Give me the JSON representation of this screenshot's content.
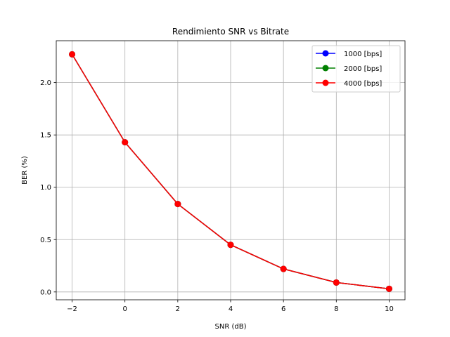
{
  "chart_data": {
    "type": "line",
    "title": "Rendimiento SNR vs Bitrate",
    "xlabel": "SNR (dB)",
    "ylabel": "BER (%)",
    "x": [
      -2,
      0,
      2,
      4,
      6,
      8,
      10
    ],
    "xlim": [
      -2.6,
      10.6
    ],
    "ylim": [
      -0.075,
      2.4
    ],
    "xticks": [
      -2,
      0,
      2,
      4,
      6,
      8,
      10
    ],
    "xtick_labels": [
      "−2",
      "0",
      "2",
      "4",
      "6",
      "8",
      "10"
    ],
    "yticks": [
      0.0,
      0.5,
      1.0,
      1.5,
      2.0
    ],
    "ytick_labels": [
      "0.0",
      "0.5",
      "1.0",
      "1.5",
      "2.0"
    ],
    "grid": true,
    "legend_position": "top-right",
    "series": [
      {
        "name": "1000 [bps]",
        "color": "#0000ff",
        "values": [
          2.27,
          1.43,
          0.84,
          0.45,
          0.22,
          0.09,
          0.03
        ]
      },
      {
        "name": "2000 [bps]",
        "color": "#008000",
        "values": [
          2.27,
          1.43,
          0.84,
          0.45,
          0.22,
          0.09,
          0.03
        ]
      },
      {
        "name": "4000 [bps]",
        "color": "#ff0000",
        "values": [
          2.27,
          1.43,
          0.84,
          0.45,
          0.22,
          0.09,
          0.03
        ]
      }
    ]
  }
}
